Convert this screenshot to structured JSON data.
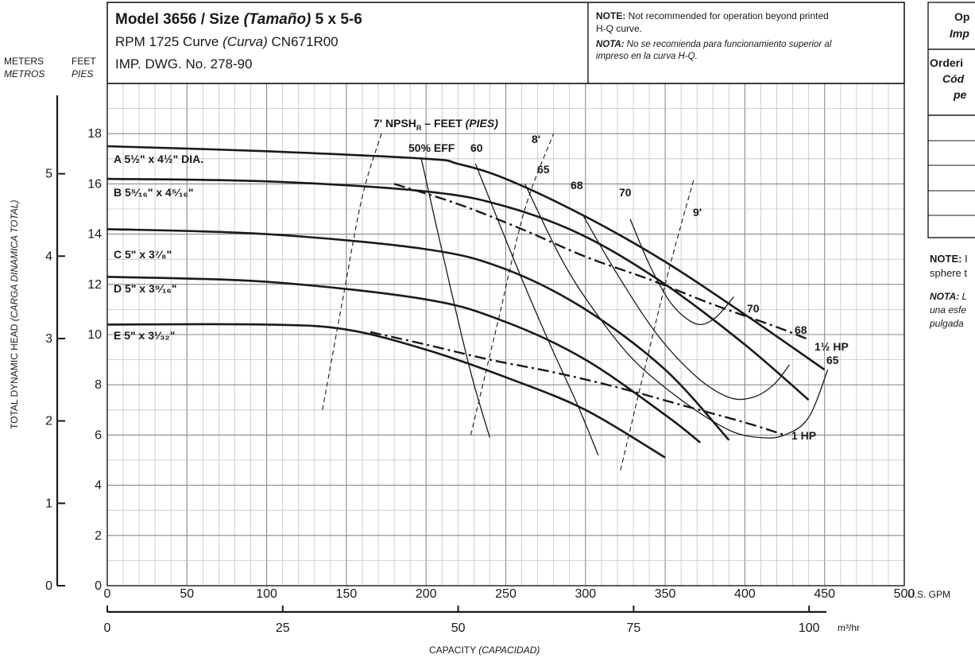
{
  "header": {
    "model_line_a": "Model 3656 / Size ",
    "model_line_b": "(Tamaño)",
    "model_line_c": " 5 x 5-6",
    "rpm_line_a": "RPM 1725 Curve ",
    "rpm_line_b": "(Curva)",
    "rpm_line_c": " CN671R00",
    "imp_line": "IMP. DWG. No. 278-90"
  },
  "note": {
    "en_label": "NOTE:",
    "en_text1": " Not recommended for operation beyond printed",
    "en_text2": "H-Q curve.",
    "es_label": "NOTA:",
    "es_text1": " No se recomienda para funcionamiento superior al",
    "es_text2": "impreso en la curva H-Q."
  },
  "side_panel": {
    "title1": "Op",
    "title2": "Imp",
    "col1": "Orderi",
    "col2": "Cód",
    "col3": "pe",
    "note_label": "NOTE:",
    "note_text": " I",
    "note_line2": "sphere t",
    "nota_label": "NOTA:",
    "nota_text": " L",
    "nota_line2": "una esfe",
    "nota_line3": "pulgada"
  },
  "chart_data": {
    "type": "line",
    "xlabel": "CAPACITY",
    "xlabel_es": "(CAPACIDAD)",
    "ylabel": "TOTAL DYNAMIC HEAD",
    "ylabel_es": "(CARGA DINAMICA TOTAL)",
    "x_unit": "U.S. GPM",
    "x2_unit": "m³/hr",
    "y_unit_left": "METERS",
    "y_unit_left_es": "METROS",
    "y_unit_right": "FEET",
    "y_unit_right_es": "PIES",
    "xlim": [
      0,
      500
    ],
    "ylim": [
      0,
      20
    ],
    "x_ticks": [
      "0",
      "50",
      "100",
      "150",
      "200",
      "250",
      "300",
      "350",
      "400",
      "450",
      "500"
    ],
    "x2_ticks": [
      "0",
      "25",
      "50",
      "75",
      "100"
    ],
    "y_ticks": [
      "0",
      "2",
      "4",
      "6",
      "8",
      "10",
      "12",
      "14",
      "16",
      "18"
    ],
    "meter_ticks": [
      "0",
      "1",
      "2",
      "3",
      "4",
      "5"
    ],
    "head_curves": [
      {
        "name": "A 5½\" x 4½\" DIA.",
        "x": [
          0,
          100,
          200,
          220,
          250,
          300,
          350,
          400,
          450
        ],
        "y": [
          17.5,
          17.3,
          17.0,
          16.8,
          16.2,
          14.7,
          12.9,
          10.8,
          8.6
        ]
      },
      {
        "name": "B 5⁵⁄₁₆\" x 4⁵⁄₁₆\"",
        "x": [
          0,
          100,
          200,
          250,
          300,
          350,
          400,
          440
        ],
        "y": [
          16.2,
          16.1,
          15.7,
          15.1,
          13.9,
          12.0,
          9.6,
          7.4
        ]
      },
      {
        "name": "C 5\" x 3⁷⁄₈\"",
        "x": [
          0,
          100,
          200,
          250,
          300,
          350,
          390
        ],
        "y": [
          14.2,
          14.0,
          13.4,
          12.6,
          11.0,
          8.6,
          5.8
        ]
      },
      {
        "name": "D 5\" x 3⁹⁄₁₆\"",
        "x": [
          0,
          100,
          200,
          250,
          300,
          350,
          372
        ],
        "y": [
          12.3,
          12.1,
          11.4,
          10.5,
          9.0,
          6.8,
          5.7
        ]
      },
      {
        "name": "E 5\" x 3¹⁄₃₂\"",
        "x": [
          0,
          100,
          150,
          200,
          250,
          300,
          350
        ],
        "y": [
          10.4,
          10.4,
          10.2,
          9.4,
          8.3,
          7.0,
          5.1
        ]
      }
    ],
    "efficiency_curves": [
      {
        "name": "50% EFF",
        "x": [
          197,
          213,
          228,
          240
        ],
        "y": [
          17.0,
          12.5,
          8.5,
          5.9
        ]
      },
      {
        "name": "60",
        "x": [
          231,
          255,
          275,
          295,
          308
        ],
        "y": [
          16.8,
          13.0,
          10.0,
          7.2,
          5.2
        ]
      },
      {
        "name": "65",
        "x": [
          262,
          285,
          305,
          330,
          360,
          390,
          410,
          425,
          440,
          452
        ],
        "y": [
          16.0,
          13.0,
          11.0,
          9.0,
          7.4,
          6.2,
          5.9,
          6.0,
          6.7,
          8.6
        ]
      },
      {
        "name": "68",
        "x": [
          298,
          320,
          345,
          370,
          390,
          405,
          418,
          428
        ],
        "y": [
          14.8,
          12.4,
          10.0,
          8.3,
          7.5,
          7.5,
          8.0,
          8.8
        ]
      },
      {
        "name": "70",
        "x": [
          328,
          340,
          352,
          362,
          372,
          382,
          393
        ],
        "y": [
          14.6,
          12.8,
          11.4,
          10.7,
          10.4,
          10.7,
          11.5
        ]
      }
    ],
    "npsh_curves": [
      {
        "name": "7'",
        "x": [
          135,
          148,
          160,
          172
        ],
        "y": [
          7.0,
          11.5,
          15.5,
          18.0
        ]
      },
      {
        "name": "8'",
        "x": [
          228,
          245,
          262,
          280
        ],
        "y": [
          6.0,
          10.5,
          15.0,
          18.0
        ]
      },
      {
        "name": "9'",
        "x": [
          322,
          337,
          352,
          368
        ],
        "y": [
          4.6,
          8.6,
          12.5,
          16.2
        ]
      }
    ],
    "npsh_title_a": "7' NPSH",
    "npsh_title_sub": "R",
    "npsh_title_b": " – FEET ",
    "npsh_title_c": "(PIES)",
    "npsh_label_8": "8'",
    "npsh_label_9": "9'",
    "hp_lines": [
      {
        "name": "1½ HP",
        "x": [
          180,
          220,
          260,
          300,
          340,
          380,
          420,
          440
        ],
        "y": [
          16.0,
          15.2,
          14.2,
          13.1,
          12.2,
          11.2,
          10.3,
          9.8
        ]
      },
      {
        "name": "1 HP",
        "x": [
          165,
          200,
          240,
          280,
          320,
          360,
          400,
          425
        ],
        "y": [
          10.1,
          9.6,
          9.0,
          8.5,
          7.9,
          7.2,
          6.5,
          6.0
        ]
      }
    ],
    "eff_labels": {
      "e50": "50% EFF",
      "e60": "60",
      "e65": "65",
      "e68": "68",
      "e70": "70",
      "e70b": "70",
      "e68b": "68",
      "e65b": "65"
    }
  }
}
